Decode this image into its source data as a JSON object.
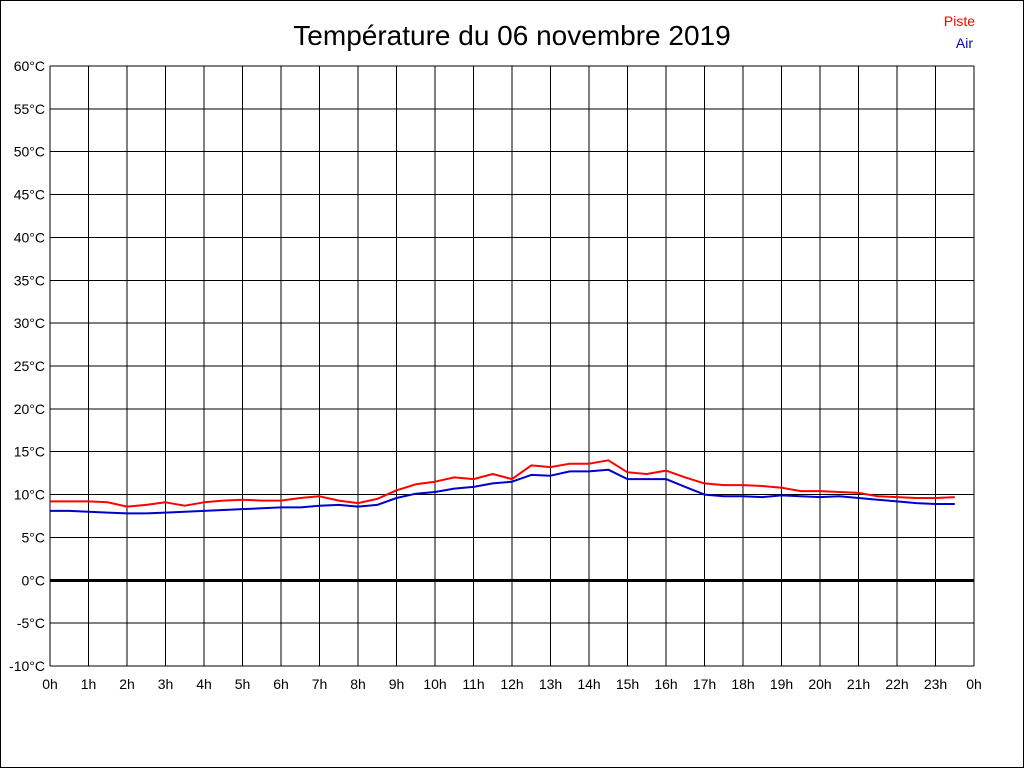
{
  "chart_data": {
    "type": "line",
    "title": "Température du 06 novembre 2019",
    "legend_position": "top-right",
    "grid": true,
    "ylim": [
      -10,
      60
    ],
    "yticks": [
      60,
      55,
      50,
      45,
      40,
      35,
      30,
      25,
      20,
      15,
      10,
      5,
      0,
      -5,
      -10
    ],
    "ytick_labels": [
      "60°C",
      "55°C",
      "50°C",
      "45°C",
      "40°C",
      "35°C",
      "30°C",
      "25°C",
      "20°C",
      "15°C",
      "10°C",
      "5°C",
      "0°C",
      "-5°C",
      "-10°C"
    ],
    "xlim": [
      0,
      24
    ],
    "xticks": [
      0,
      1,
      2,
      3,
      4,
      5,
      6,
      7,
      8,
      9,
      10,
      11,
      12,
      13,
      14,
      15,
      16,
      17,
      18,
      19,
      20,
      21,
      22,
      23,
      24
    ],
    "xtick_labels": [
      "0h",
      "1h",
      "2h",
      "3h",
      "4h",
      "5h",
      "6h",
      "7h",
      "8h",
      "9h",
      "10h",
      "11h",
      "12h",
      "13h",
      "14h",
      "15h",
      "16h",
      "17h",
      "18h",
      "19h",
      "20h",
      "21h",
      "22h",
      "23h",
      "0h"
    ],
    "x": [
      0,
      0.5,
      1,
      1.5,
      2,
      2.5,
      3,
      3.5,
      4,
      4.5,
      5,
      5.5,
      6,
      6.5,
      7,
      7.5,
      8,
      8.5,
      9,
      9.5,
      10,
      10.5,
      11,
      11.5,
      12,
      12.5,
      13,
      13.5,
      14,
      14.5,
      15,
      15.5,
      16,
      16.5,
      17,
      17.5,
      18,
      18.5,
      19,
      19.5,
      20,
      20.5,
      21,
      21.5,
      22,
      22.5,
      23,
      23.5
    ],
    "series": [
      {
        "name": "Piste",
        "color": "#ff0000",
        "values": [
          9.2,
          9.2,
          9.2,
          9.1,
          8.6,
          8.8,
          9.1,
          8.7,
          9.1,
          9.3,
          9.4,
          9.3,
          9.3,
          9.6,
          9.8,
          9.3,
          9.0,
          9.5,
          10.5,
          11.2,
          11.5,
          12.0,
          11.8,
          12.4,
          11.8,
          13.4,
          13.2,
          13.6,
          13.6,
          14.0,
          12.6,
          12.4,
          12.8,
          12.0,
          11.3,
          11.1,
          11.1,
          11.0,
          10.8,
          10.4,
          10.4,
          10.3,
          10.2,
          9.8,
          9.7,
          9.6,
          9.6,
          9.7
        ]
      },
      {
        "name": "Air",
        "color": "#0000cc",
        "values": [
          8.1,
          8.1,
          8.0,
          7.9,
          7.8,
          7.8,
          7.9,
          8.0,
          8.1,
          8.2,
          8.3,
          8.4,
          8.5,
          8.5,
          8.7,
          8.8,
          8.6,
          8.8,
          9.6,
          10.1,
          10.3,
          10.7,
          10.9,
          11.3,
          11.5,
          12.3,
          12.2,
          12.7,
          12.7,
          12.9,
          11.8,
          11.8,
          11.8,
          10.9,
          10.0,
          9.8,
          9.8,
          9.7,
          9.9,
          9.8,
          9.7,
          9.8,
          9.6,
          9.4,
          9.2,
          9.0,
          8.9,
          8.9
        ]
      }
    ]
  }
}
